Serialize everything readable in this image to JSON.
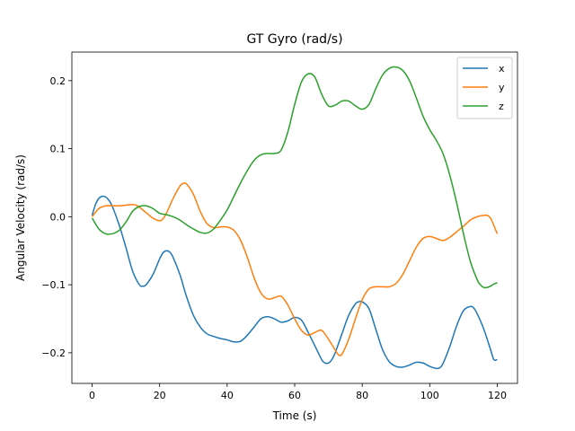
{
  "chart_data": {
    "type": "line",
    "title": "GT Gyro (rad/s)",
    "xlabel": "Time (s)",
    "ylabel": "Angular Velocity (rad/s)",
    "xlim": [
      -6,
      126
    ],
    "ylim": [
      -0.245,
      0.242
    ],
    "xticks": [
      0,
      20,
      40,
      60,
      80,
      100,
      120
    ],
    "yticks": [
      -0.2,
      -0.1,
      0.0,
      0.1,
      0.2
    ],
    "ytick_labels": [
      "−0.2",
      "−0.1",
      "0.0",
      "0.1",
      "0.2"
    ],
    "grid": false,
    "legend_position": "top-right",
    "series": [
      {
        "name": "x",
        "color": "#1f77b4",
        "points": [
          [
            0,
            0.002
          ],
          [
            1,
            0.018
          ],
          [
            2,
            0.027
          ],
          [
            3,
            0.03
          ],
          [
            4,
            0.029
          ],
          [
            5,
            0.024
          ],
          [
            6,
            0.015
          ],
          [
            8,
            -0.012
          ],
          [
            10,
            -0.045
          ],
          [
            12,
            -0.08
          ],
          [
            14,
            -0.1
          ],
          [
            15,
            -0.102
          ],
          [
            16,
            -0.1
          ],
          [
            18,
            -0.085
          ],
          [
            20,
            -0.062
          ],
          [
            21,
            -0.053
          ],
          [
            22,
            -0.05
          ],
          [
            23,
            -0.052
          ],
          [
            24,
            -0.06
          ],
          [
            26,
            -0.085
          ],
          [
            28,
            -0.118
          ],
          [
            30,
            -0.145
          ],
          [
            32,
            -0.162
          ],
          [
            34,
            -0.172
          ],
          [
            36,
            -0.176
          ],
          [
            38,
            -0.179
          ],
          [
            40,
            -0.181
          ],
          [
            42,
            -0.184
          ],
          [
            44,
            -0.183
          ],
          [
            46,
            -0.174
          ],
          [
            48,
            -0.162
          ],
          [
            50,
            -0.15
          ],
          [
            52,
            -0.147
          ],
          [
            54,
            -0.15
          ],
          [
            56,
            -0.155
          ],
          [
            58,
            -0.153
          ],
          [
            60,
            -0.148
          ],
          [
            62,
            -0.152
          ],
          [
            64,
            -0.17
          ],
          [
            66,
            -0.19
          ],
          [
            68,
            -0.21
          ],
          [
            69,
            -0.215
          ],
          [
            70,
            -0.215
          ],
          [
            71,
            -0.21
          ],
          [
            72,
            -0.2
          ],
          [
            74,
            -0.172
          ],
          [
            76,
            -0.145
          ],
          [
            78,
            -0.128
          ],
          [
            79,
            -0.125
          ],
          [
            80,
            -0.125
          ],
          [
            82,
            -0.135
          ],
          [
            84,
            -0.165
          ],
          [
            86,
            -0.195
          ],
          [
            88,
            -0.213
          ],
          [
            90,
            -0.22
          ],
          [
            92,
            -0.221
          ],
          [
            94,
            -0.218
          ],
          [
            96,
            -0.214
          ],
          [
            98,
            -0.215
          ],
          [
            100,
            -0.22
          ],
          [
            102,
            -0.223
          ],
          [
            103,
            -0.222
          ],
          [
            104,
            -0.215
          ],
          [
            106,
            -0.19
          ],
          [
            108,
            -0.16
          ],
          [
            110,
            -0.138
          ],
          [
            112,
            -0.132
          ],
          [
            113,
            -0.134
          ],
          [
            114,
            -0.142
          ],
          [
            116,
            -0.165
          ],
          [
            118,
            -0.195
          ],
          [
            119,
            -0.21
          ],
          [
            120,
            -0.21
          ]
        ]
      },
      {
        "name": "y",
        "color": "#ff7f0e",
        "points": [
          [
            0,
            0.0
          ],
          [
            2,
            0.012
          ],
          [
            4,
            0.016
          ],
          [
            6,
            0.016
          ],
          [
            8,
            0.016
          ],
          [
            10,
            0.017
          ],
          [
            12,
            0.018
          ],
          [
            13,
            0.017
          ],
          [
            14,
            0.014
          ],
          [
            16,
            0.006
          ],
          [
            18,
            -0.002
          ],
          [
            20,
            -0.006
          ],
          [
            21,
            -0.003
          ],
          [
            22,
            0.005
          ],
          [
            24,
            0.027
          ],
          [
            26,
            0.045
          ],
          [
            27,
            0.049
          ],
          [
            28,
            0.048
          ],
          [
            30,
            0.033
          ],
          [
            32,
            0.008
          ],
          [
            34,
            -0.01
          ],
          [
            36,
            -0.016
          ],
          [
            38,
            -0.015
          ],
          [
            40,
            -0.015
          ],
          [
            42,
            -0.02
          ],
          [
            44,
            -0.035
          ],
          [
            46,
            -0.06
          ],
          [
            48,
            -0.09
          ],
          [
            50,
            -0.112
          ],
          [
            52,
            -0.121
          ],
          [
            54,
            -0.119
          ],
          [
            56,
            -0.117
          ],
          [
            58,
            -0.13
          ],
          [
            60,
            -0.15
          ],
          [
            62,
            -0.167
          ],
          [
            64,
            -0.174
          ],
          [
            66,
            -0.17
          ],
          [
            68,
            -0.167
          ],
          [
            70,
            -0.18
          ],
          [
            72,
            -0.196
          ],
          [
            73,
            -0.203
          ],
          [
            74,
            -0.202
          ],
          [
            76,
            -0.18
          ],
          [
            78,
            -0.15
          ],
          [
            80,
            -0.122
          ],
          [
            82,
            -0.106
          ],
          [
            84,
            -0.103
          ],
          [
            86,
            -0.103
          ],
          [
            88,
            -0.103
          ],
          [
            90,
            -0.098
          ],
          [
            92,
            -0.085
          ],
          [
            94,
            -0.065
          ],
          [
            96,
            -0.045
          ],
          [
            98,
            -0.032
          ],
          [
            100,
            -0.029
          ],
          [
            102,
            -0.032
          ],
          [
            104,
            -0.035
          ],
          [
            106,
            -0.03
          ],
          [
            108,
            -0.022
          ],
          [
            110,
            -0.014
          ],
          [
            112,
            -0.005
          ],
          [
            114,
            0.0
          ],
          [
            116,
            0.002
          ],
          [
            117,
            0.002
          ],
          [
            118,
            -0.002
          ],
          [
            119,
            -0.013
          ],
          [
            120,
            -0.025
          ]
        ]
      },
      {
        "name": "z",
        "color": "#2ca02c",
        "points": [
          [
            0,
            -0.002
          ],
          [
            2,
            -0.018
          ],
          [
            4,
            -0.025
          ],
          [
            6,
            -0.025
          ],
          [
            8,
            -0.02
          ],
          [
            10,
            -0.008
          ],
          [
            12,
            0.008
          ],
          [
            14,
            0.015
          ],
          [
            16,
            0.016
          ],
          [
            18,
            0.012
          ],
          [
            20,
            0.005
          ],
          [
            22,
            0.003
          ],
          [
            24,
            0.0
          ],
          [
            26,
            -0.005
          ],
          [
            28,
            -0.012
          ],
          [
            30,
            -0.018
          ],
          [
            32,
            -0.023
          ],
          [
            34,
            -0.024
          ],
          [
            36,
            -0.018
          ],
          [
            38,
            -0.005
          ],
          [
            40,
            0.01
          ],
          [
            42,
            0.03
          ],
          [
            44,
            0.05
          ],
          [
            46,
            0.068
          ],
          [
            48,
            0.083
          ],
          [
            50,
            0.091
          ],
          [
            52,
            0.093
          ],
          [
            54,
            0.093
          ],
          [
            56,
            0.098
          ],
          [
            58,
            0.125
          ],
          [
            60,
            0.165
          ],
          [
            62,
            0.198
          ],
          [
            64,
            0.21
          ],
          [
            66,
            0.205
          ],
          [
            68,
            0.18
          ],
          [
            70,
            0.163
          ],
          [
            72,
            0.164
          ],
          [
            74,
            0.17
          ],
          [
            76,
            0.17
          ],
          [
            78,
            0.163
          ],
          [
            80,
            0.158
          ],
          [
            82,
            0.165
          ],
          [
            84,
            0.188
          ],
          [
            86,
            0.208
          ],
          [
            88,
            0.218
          ],
          [
            90,
            0.22
          ],
          [
            92,
            0.215
          ],
          [
            94,
            0.2
          ],
          [
            96,
            0.175
          ],
          [
            98,
            0.148
          ],
          [
            100,
            0.128
          ],
          [
            102,
            0.112
          ],
          [
            104,
            0.092
          ],
          [
            106,
            0.06
          ],
          [
            108,
            0.02
          ],
          [
            110,
            -0.025
          ],
          [
            112,
            -0.065
          ],
          [
            114,
            -0.092
          ],
          [
            115,
            -0.1
          ],
          [
            116,
            -0.104
          ],
          [
            117,
            -0.104
          ],
          [
            118,
            -0.102
          ],
          [
            119,
            -0.099
          ],
          [
            120,
            -0.097
          ]
        ]
      }
    ]
  }
}
